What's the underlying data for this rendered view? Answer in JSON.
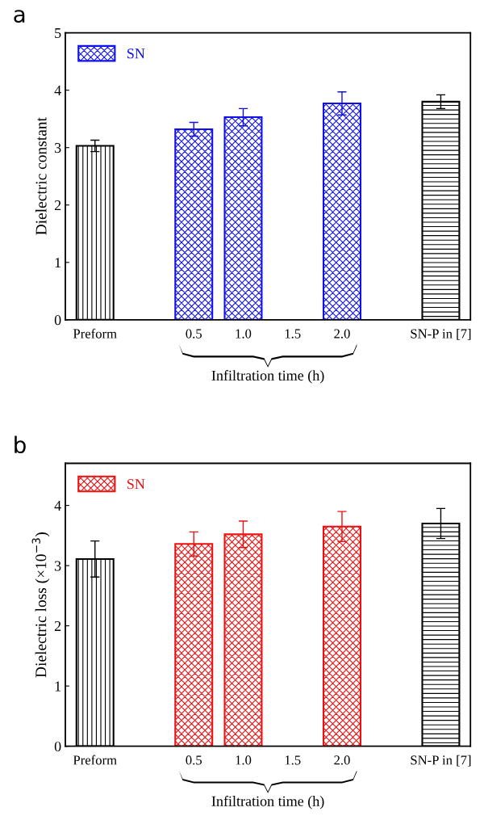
{
  "chart_data": [
    {
      "type": "bar",
      "title": "a",
      "ylabel": "Dielectric constant",
      "xlabel": "Infiltration time (h)",
      "categories": [
        "Preform",
        null,
        "0.5",
        "1.0",
        "1.5",
        "2.0",
        null,
        "SN-P in [7]"
      ],
      "ylim": [
        0,
        5
      ],
      "yticks": [
        0,
        1,
        2,
        3,
        4,
        5
      ],
      "legend": "top left",
      "grid": false,
      "series": [
        {
          "color": "#000000",
          "values": [
            3.03,
            null,
            null,
            null,
            null,
            null,
            null,
            null
          ],
          "errors": [
            0.1,
            null,
            null,
            null,
            null,
            null,
            null,
            null
          ]
        },
        {
          "name": "SN",
          "color": "#1010ee",
          "values": [
            null,
            null,
            3.32,
            3.53,
            null,
            3.77,
            null,
            null
          ],
          "errors": [
            null,
            null,
            0.12,
            0.15,
            null,
            0.2,
            null,
            null
          ]
        },
        {
          "color": "#000000",
          "values": [
            null,
            null,
            null,
            null,
            null,
            null,
            null,
            3.8
          ],
          "errors": [
            null,
            null,
            null,
            null,
            null,
            null,
            null,
            0.12
          ]
        }
      ]
    },
    {
      "type": "bar",
      "title": "b",
      "ylabel": "Dielectric loss (×10$^{−3}$)",
      "xlabel": "Infiltration time (h)",
      "categories": [
        "Preform",
        null,
        "0.5",
        "1.0",
        "1.5",
        "2.0",
        null,
        "SN-P in [7]"
      ],
      "ylim": [
        0,
        4.7
      ],
      "yticks": [
        0,
        1,
        2,
        3,
        4
      ],
      "legend": "top left",
      "grid": false,
      "series": [
        {
          "color": "#000000",
          "values": [
            3.11,
            null,
            null,
            null,
            null,
            null,
            null,
            null
          ],
          "errors": [
            0.3,
            null,
            null,
            null,
            null,
            null,
            null,
            null
          ]
        },
        {
          "name": "SN",
          "color": "#ee1010",
          "values": [
            null,
            null,
            3.36,
            3.52,
            null,
            3.65,
            null,
            null
          ],
          "errors": [
            null,
            null,
            0.2,
            0.22,
            null,
            0.25,
            null,
            null
          ]
        },
        {
          "color": "#000000",
          "values": [
            null,
            null,
            null,
            null,
            null,
            null,
            null,
            3.7
          ],
          "errors": [
            null,
            null,
            null,
            null,
            null,
            null,
            null,
            0.25
          ]
        }
      ]
    }
  ]
}
